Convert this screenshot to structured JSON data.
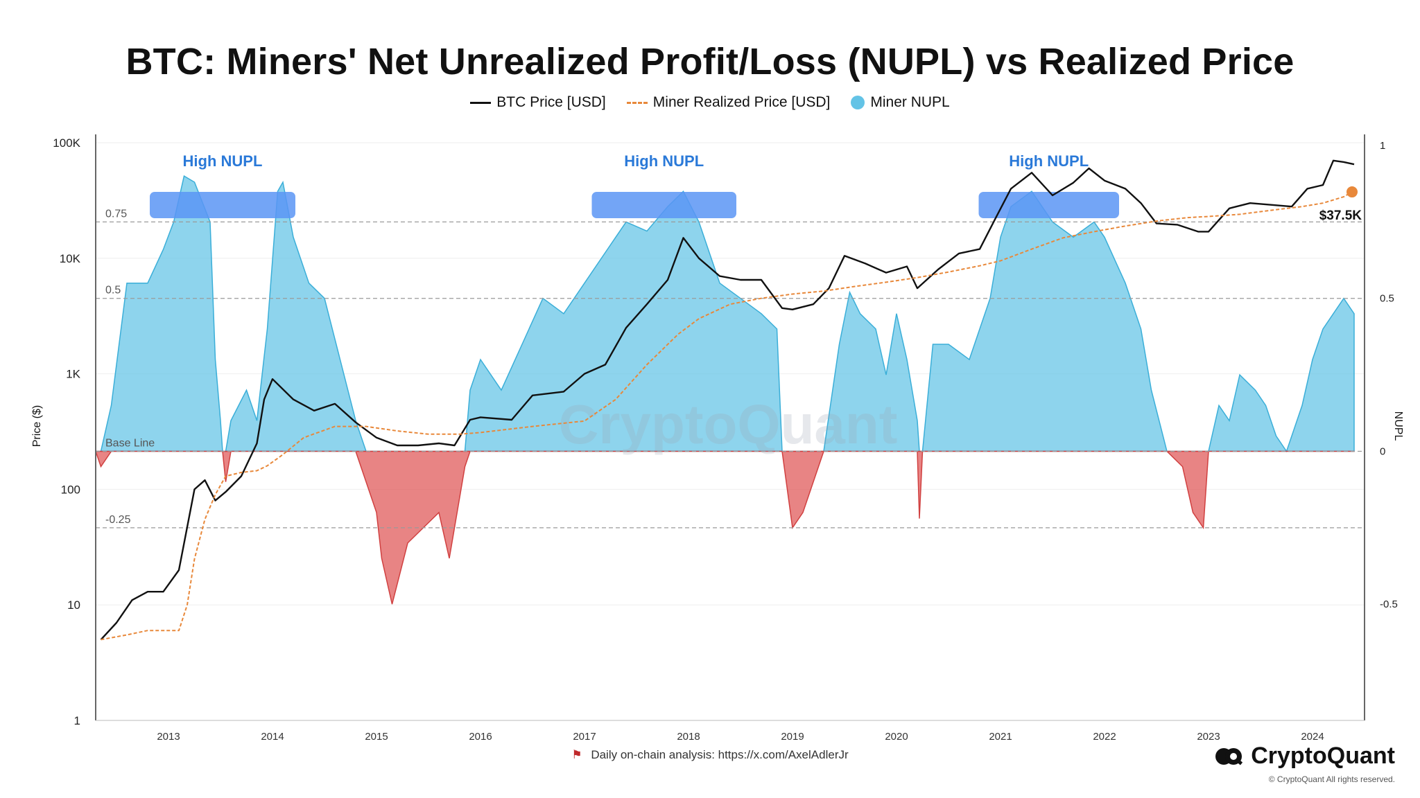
{
  "title": "BTC: Miners' Net Unrealized Profit/Loss (NUPL) vs Realized Price",
  "legend": {
    "btc_price": "BTC Price [USD]",
    "miner_realized_price": "Miner Realized Price [USD]",
    "miner_nupl": "Miner NUPL"
  },
  "colors": {
    "btc_price": "#111111",
    "realized_price": "#e8883a",
    "nupl_positive": "#63c3e6",
    "nupl_negative": "#e05b5b",
    "high_nupl_box": "#5b95f5",
    "annotation_text": "#2a79d8"
  },
  "footnote": "Daily on-chain analysis: https://x.com/AxelAdlerJr",
  "brand": "CryptoQuant",
  "copyright": "© CryptoQuant All rights reserved.",
  "watermark": "CryptoQuant",
  "chart_data": {
    "type": "line",
    "title": "BTC: Miners' Net Unrealized Profit/Loss (NUPL) vs Realized Price",
    "x_range": [
      2012.3,
      2024.5
    ],
    "x_ticks": [
      "2013",
      "2014",
      "2015",
      "2016",
      "2017",
      "2018",
      "2019",
      "2020",
      "2021",
      "2022",
      "2023",
      "2024"
    ],
    "y_left": {
      "label": "Price ($)",
      "scale": "log",
      "range": [
        1,
        100000
      ],
      "ticks": [
        "1",
        "10",
        "100",
        "1K",
        "10K",
        "100K"
      ]
    },
    "y_right": {
      "label": "NUPL",
      "range": [
        -0.88,
        1.0
      ],
      "ticks": [
        "1",
        "0.5",
        "0",
        "-0.5"
      ]
    },
    "reference_lines": [
      {
        "value": 0.75,
        "label": "0.75"
      },
      {
        "value": 0.5,
        "label": "0.5"
      },
      {
        "value": 0,
        "label": "Base Line"
      },
      {
        "value": -0.25,
        "label": "-0.25"
      }
    ],
    "annotations": [
      {
        "text": "High NUPL",
        "x_range": [
          2012.82,
          2014.22
        ]
      },
      {
        "text": "High NUPL",
        "x_range": [
          2017.07,
          2018.46
        ]
      },
      {
        "text": "High NUPL",
        "x_range": [
          2020.79,
          2022.14
        ]
      }
    ],
    "last_value_label": "$37.5K",
    "series": [
      {
        "name": "BTC Price [USD]",
        "axis": "left",
        "style": "solid",
        "x": [
          2012.35,
          2012.5,
          2012.65,
          2012.8,
          2012.95,
          2013.1,
          2013.25,
          2013.35,
          2013.45,
          2013.55,
          2013.7,
          2013.85,
          2013.92,
          2014.0,
          2014.2,
          2014.4,
          2014.6,
          2014.8,
          2015.0,
          2015.2,
          2015.4,
          2015.6,
          2015.75,
          2015.9,
          2016.0,
          2016.3,
          2016.5,
          2016.8,
          2017.0,
          2017.2,
          2017.4,
          2017.6,
          2017.8,
          2017.95,
          2018.1,
          2018.3,
          2018.5,
          2018.7,
          2018.9,
          2019.0,
          2019.2,
          2019.35,
          2019.5,
          2019.7,
          2019.9,
          2020.1,
          2020.2,
          2020.4,
          2020.6,
          2020.8,
          2020.95,
          2021.1,
          2021.3,
          2021.5,
          2021.7,
          2021.85,
          2022.0,
          2022.2,
          2022.35,
          2022.5,
          2022.7,
          2022.9,
          2023.0,
          2023.2,
          2023.4,
          2023.6,
          2023.8,
          2023.95,
          2024.1,
          2024.2,
          2024.3,
          2024.4
        ],
        "values": [
          5,
          7,
          11,
          13,
          13,
          20,
          100,
          120,
          80,
          95,
          130,
          250,
          600,
          900,
          600,
          480,
          550,
          380,
          280,
          240,
          240,
          250,
          240,
          400,
          420,
          400,
          650,
          700,
          1000,
          1200,
          2500,
          4000,
          6500,
          15000,
          10000,
          7000,
          6500,
          6500,
          3700,
          3600,
          4000,
          5500,
          10500,
          9000,
          7500,
          8500,
          5500,
          8000,
          11000,
          12000,
          22000,
          40000,
          55000,
          35000,
          45000,
          60000,
          47000,
          40000,
          30000,
          20000,
          19500,
          17000,
          17000,
          27000,
          30000,
          29000,
          28000,
          40000,
          43000,
          70000,
          68000,
          65000
        ]
      },
      {
        "name": "Miner Realized Price [USD]",
        "axis": "left",
        "style": "dashed",
        "x": [
          2012.35,
          2012.6,
          2012.8,
          2013.1,
          2013.18,
          2013.25,
          2013.35,
          2013.45,
          2013.55,
          2013.7,
          2013.85,
          2013.95,
          2014.1,
          2014.3,
          2014.6,
          2014.9,
          2015.2,
          2015.5,
          2015.8,
          2016.0,
          2016.5,
          2017.0,
          2017.3,
          2017.6,
          2017.9,
          2018.1,
          2018.4,
          2018.7,
          2019.0,
          2019.3,
          2019.6,
          2019.9,
          2020.2,
          2020.5,
          2020.8,
          2021.0,
          2021.3,
          2021.6,
          2021.9,
          2022.2,
          2022.5,
          2022.8,
          2023.0,
          2023.3,
          2023.6,
          2023.9,
          2024.1,
          2024.3,
          2024.38
        ],
        "values": [
          5,
          5.5,
          6,
          6,
          10,
          25,
          55,
          90,
          130,
          140,
          145,
          160,
          200,
          280,
          350,
          350,
          320,
          300,
          300,
          310,
          350,
          390,
          600,
          1200,
          2200,
          3000,
          4000,
          4500,
          4900,
          5200,
          5700,
          6200,
          6800,
          7600,
          8600,
          9500,
          12000,
          15000,
          17000,
          19000,
          21000,
          22500,
          23000,
          24000,
          26000,
          28000,
          30000,
          34000,
          37500
        ]
      },
      {
        "name": "Miner NUPL",
        "axis": "right",
        "style": "area",
        "x": [
          2012.3,
          2012.35,
          2012.45,
          2012.6,
          2012.8,
          2012.95,
          2013.05,
          2013.15,
          2013.25,
          2013.4,
          2013.45,
          2013.5,
          2013.52,
          2013.55,
          2013.6,
          2013.75,
          2013.85,
          2013.95,
          2014.05,
          2014.1,
          2014.2,
          2014.35,
          2014.5,
          2014.65,
          2014.8,
          2014.9,
          2015.0,
          2015.05,
          2015.15,
          2015.3,
          2015.45,
          2015.6,
          2015.7,
          2015.8,
          2015.85,
          2015.9,
          2016.0,
          2016.2,
          2016.4,
          2016.6,
          2016.8,
          2017.0,
          2017.2,
          2017.4,
          2017.6,
          2017.8,
          2017.95,
          2018.1,
          2018.3,
          2018.5,
          2018.7,
          2018.85,
          2018.9,
          2019.0,
          2019.1,
          2019.2,
          2019.3,
          2019.45,
          2019.55,
          2019.65,
          2019.8,
          2019.9,
          2020.0,
          2020.1,
          2020.2,
          2020.22,
          2020.25,
          2020.35,
          2020.5,
          2020.7,
          2020.9,
          2021.0,
          2021.1,
          2021.3,
          2021.5,
          2021.7,
          2021.9,
          2022.0,
          2022.2,
          2022.35,
          2022.45,
          2022.6,
          2022.75,
          2022.85,
          2022.95,
          2023.0,
          2023.1,
          2023.2,
          2023.3,
          2023.45,
          2023.55,
          2023.65,
          2023.75,
          2023.9,
          2024.0,
          2024.1,
          2024.2,
          2024.3,
          2024.4
        ],
        "values": [
          0.0,
          -0.05,
          0.15,
          0.55,
          0.55,
          0.66,
          0.75,
          0.9,
          0.88,
          0.75,
          0.3,
          0.1,
          0.0,
          -0.1,
          0.1,
          0.2,
          0.1,
          0.4,
          0.85,
          0.88,
          0.7,
          0.55,
          0.5,
          0.3,
          0.1,
          -0.1,
          -0.2,
          -0.35,
          -0.5,
          -0.3,
          -0.25,
          -0.2,
          -0.35,
          -0.15,
          -0.05,
          0.2,
          0.3,
          0.2,
          0.35,
          0.5,
          0.45,
          0.55,
          0.65,
          0.75,
          0.72,
          0.8,
          0.85,
          0.75,
          0.55,
          0.5,
          0.45,
          0.4,
          0.0,
          -0.25,
          -0.2,
          -0.1,
          0.0,
          0.35,
          0.52,
          0.45,
          0.4,
          0.25,
          0.45,
          0.3,
          0.1,
          -0.22,
          0.0,
          0.35,
          0.35,
          0.3,
          0.5,
          0.7,
          0.8,
          0.85,
          0.75,
          0.7,
          0.75,
          0.7,
          0.55,
          0.4,
          0.2,
          0.0,
          -0.05,
          -0.2,
          -0.25,
          0.0,
          0.15,
          0.1,
          0.25,
          0.2,
          0.15,
          0.05,
          0.0,
          0.15,
          0.3,
          0.4,
          0.45,
          0.5,
          0.45
        ]
      }
    ]
  }
}
